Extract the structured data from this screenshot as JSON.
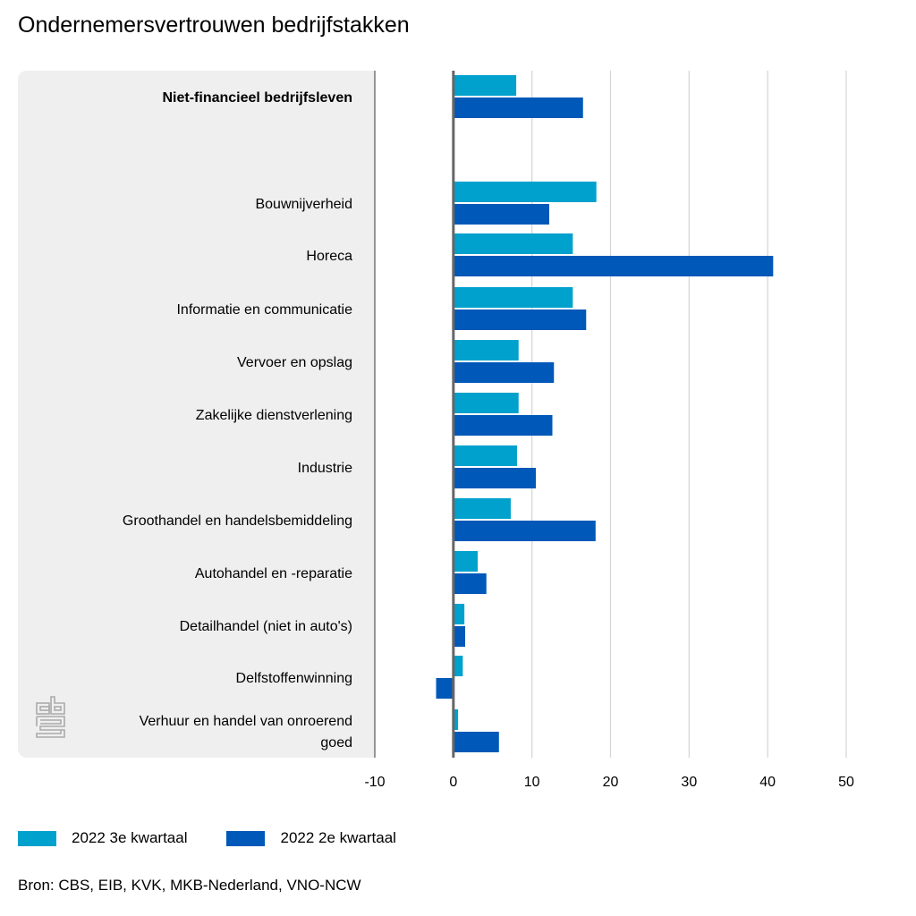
{
  "title": "Ondernemersvertrouwen bedrijfstakken",
  "source": "Bron: CBS, EIB, KVK, MKB-Nederland, VNO-NCW",
  "logo_icon": "cbs-logo-icon",
  "colors": {
    "q3": "#00a1cd",
    "q2": "#0058b8",
    "panel": "#efefef",
    "grid": "#d4d4d4",
    "axis": "#666666"
  },
  "legend": [
    {
      "label": "2022 3e kwartaal",
      "color": "#00a1cd"
    },
    {
      "label": "2022 2e kwartaal",
      "color": "#0058b8"
    }
  ],
  "chart_data": {
    "type": "bar",
    "orientation": "horizontal",
    "title": "Ondernemersvertrouwen bedrijfstakken",
    "xlabel": "",
    "ylabel": "",
    "xlim": [
      -10,
      50
    ],
    "xticks": [
      "-10",
      "0",
      "10",
      "20",
      "30",
      "40",
      "50"
    ],
    "xtick_values": [
      -10,
      0,
      10,
      20,
      30,
      40,
      50
    ],
    "grid": true,
    "legend_position": "bottom-left",
    "categories": [
      {
        "label": "Niet-financieel bedrijfsleven",
        "bold": true
      },
      {
        "label": "Bouwnijverheid",
        "bold": false
      },
      {
        "label": "Horeca",
        "bold": false
      },
      {
        "label": "Informatie en communicatie",
        "bold": false
      },
      {
        "label": "Vervoer en opslag",
        "bold": false
      },
      {
        "label": "Zakelijke dienstverlening",
        "bold": false
      },
      {
        "label": "Industrie",
        "bold": false
      },
      {
        "label": "Groothandel en handelsbemiddeling",
        "bold": false
      },
      {
        "label": "Autohandel en -reparatie",
        "bold": false
      },
      {
        "label": "Detailhandel (niet in auto's)",
        "bold": false
      },
      {
        "label": "Delfstoffenwinning",
        "bold": false
      },
      {
        "label": "Verhuur en handel van onroerend goed",
        "label_lines": [
          "Verhuur en handel van onroerend",
          "goed"
        ],
        "bold": false
      }
    ],
    "series": [
      {
        "name": "2022 3e kwartaal",
        "color": "#00a1cd",
        "values": [
          8.0,
          18.2,
          15.2,
          15.2,
          8.3,
          8.3,
          8.1,
          7.3,
          3.1,
          1.4,
          1.2,
          0.6
        ]
      },
      {
        "name": "2022 2e kwartaal",
        "color": "#0058b8",
        "values": [
          16.5,
          12.2,
          40.7,
          16.9,
          12.8,
          12.6,
          10.5,
          18.1,
          4.2,
          1.5,
          -2.2,
          5.8
        ]
      }
    ]
  }
}
